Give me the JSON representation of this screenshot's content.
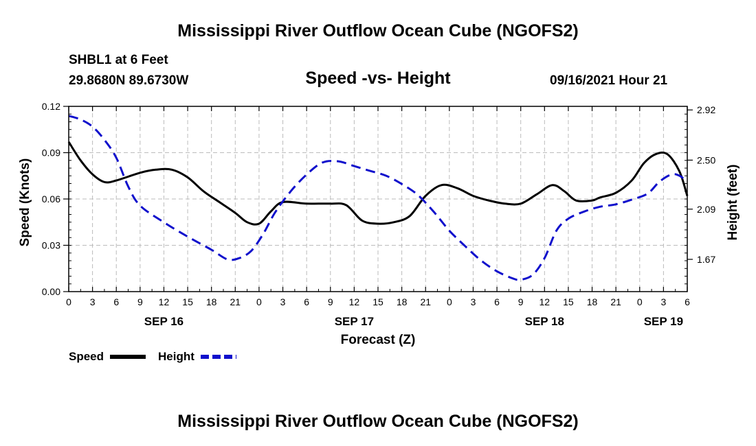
{
  "page": {
    "title_top": "Mississippi River Outflow Ocean Cube (NGOFS2)",
    "title_bottom": "Mississippi River Outflow Ocean Cube (NGOFS2)",
    "station": "SHBL1 at 6 Feet",
    "coords": "29.8680N  89.6730W",
    "subtitle": "Speed -vs- Height",
    "timestamp": "09/16/2021 Hour 21"
  },
  "chart_data": {
    "type": "line",
    "title": "Speed -vs- Height",
    "xlabel": "Forecast (Z)",
    "ylabel": "Speed (Knots)",
    "y2label": "Height (feet)",
    "x_range_hours": [
      0,
      78
    ],
    "ylim": [
      0,
      0.12
    ],
    "y2lim": [
      1.4,
      2.95
    ],
    "x_tick_labels": [
      "0",
      "3",
      "6",
      "9",
      "12",
      "15",
      "18",
      "21",
      "0",
      "3",
      "6",
      "9",
      "12",
      "15",
      "18",
      "21",
      "0",
      "3",
      "6",
      "9",
      "12",
      "15",
      "18",
      "21",
      "0",
      "3",
      "6"
    ],
    "day_labels": [
      {
        "hour": 12,
        "label": "SEP 16"
      },
      {
        "hour": 36,
        "label": "SEP 17"
      },
      {
        "hour": 60,
        "label": "SEP 18"
      },
      {
        "hour": 75,
        "label": "SEP 19"
      }
    ],
    "y_ticks": [
      "0.00",
      "0.03",
      "0.06",
      "0.09",
      "0.12"
    ],
    "y2_ticks": [
      "1.67",
      "2.09",
      "2.50",
      "2.92"
    ],
    "grid": true,
    "legend": [
      {
        "label": "Speed",
        "color": "#000000",
        "style": "solid"
      },
      {
        "label": "Height",
        "color": "#1010cc",
        "style": "dashed"
      }
    ],
    "series": [
      {
        "name": "Speed",
        "axis": "left",
        "color": "#000000",
        "x": [
          0,
          1.5,
          3,
          4.5,
          6,
          9,
          11,
          13,
          15,
          17,
          19,
          21,
          22.5,
          24,
          25.5,
          27,
          30,
          33,
          35,
          37,
          39,
          41,
          43,
          45,
          47,
          49,
          51,
          53,
          55,
          57,
          59,
          61,
          62.5,
          64,
          66,
          67,
          69,
          71,
          72.5,
          74,
          75.5,
          77,
          78
        ],
        "values": [
          0.097,
          0.085,
          0.076,
          0.071,
          0.072,
          0.077,
          0.079,
          0.079,
          0.074,
          0.065,
          0.058,
          0.051,
          0.045,
          0.044,
          0.052,
          0.058,
          0.057,
          0.057,
          0.056,
          0.046,
          0.044,
          0.045,
          0.049,
          0.062,
          0.069,
          0.067,
          0.062,
          0.059,
          0.057,
          0.057,
          0.063,
          0.069,
          0.065,
          0.059,
          0.059,
          0.061,
          0.064,
          0.072,
          0.083,
          0.089,
          0.089,
          0.078,
          0.062
        ]
      },
      {
        "name": "Height",
        "axis": "right",
        "color": "#1010cc",
        "x": [
          0,
          1.5,
          3,
          4.5,
          6,
          7.5,
          9,
          12,
          15,
          18,
          20,
          21.5,
          23,
          24.5,
          26,
          28,
          30,
          32,
          34,
          36,
          38,
          40,
          42,
          44,
          46,
          48,
          50,
          52,
          54,
          56,
          57,
          58.5,
          60,
          61.5,
          63,
          65,
          67,
          69,
          71,
          73,
          74.5,
          76,
          77,
          78
        ],
        "values": [
          2.87,
          2.84,
          2.78,
          2.67,
          2.52,
          2.28,
          2.12,
          1.98,
          1.86,
          1.75,
          1.67,
          1.68,
          1.74,
          1.88,
          2.06,
          2.24,
          2.38,
          2.48,
          2.49,
          2.45,
          2.41,
          2.37,
          2.3,
          2.21,
          2.07,
          1.91,
          1.78,
          1.66,
          1.57,
          1.51,
          1.5,
          1.54,
          1.68,
          1.91,
          2.01,
          2.07,
          2.11,
          2.13,
          2.17,
          2.22,
          2.32,
          2.38,
          2.37,
          2.32
        ]
      }
    ]
  }
}
